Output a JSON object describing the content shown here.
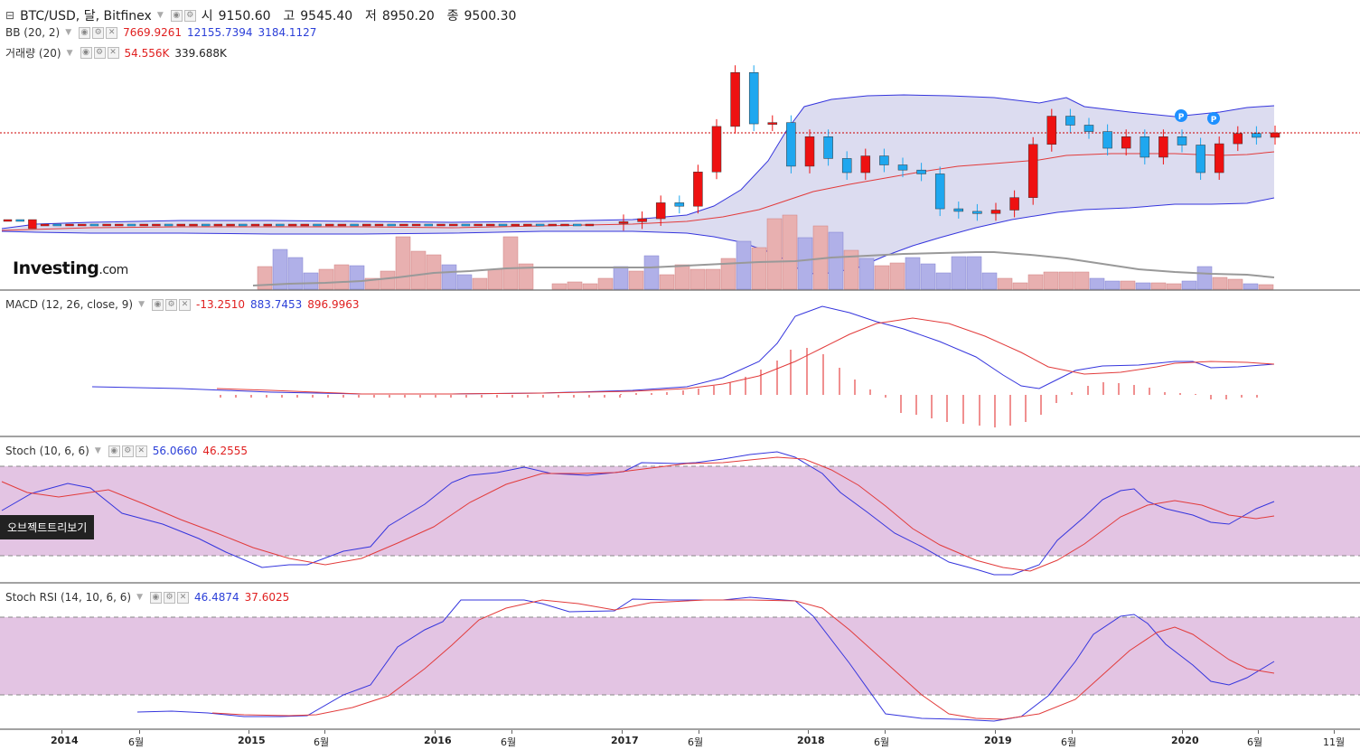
{
  "header": {
    "title": "BTC/USD, 달, Bitfinex",
    "ohlc": [
      {
        "k": "시",
        "v": "9150.60"
      },
      {
        "k": "고",
        "v": "9545.40"
      },
      {
        "k": "저",
        "v": "8950.20"
      },
      {
        "k": "종",
        "v": "9500.30"
      }
    ]
  },
  "indicators": {
    "bb": {
      "name": "BB (20, 2)",
      "v1": "7669.9261",
      "v2": "12155.7394",
      "v3": "3184.1127"
    },
    "vol": {
      "name": "거래량 (20)",
      "v1": "54.556K",
      "v2": "339.688K"
    },
    "macd": {
      "name": "MACD (12, 26, close, 9)",
      "v1": "-13.2510",
      "v2": "883.7453",
      "v3": "896.9963"
    },
    "stoch": {
      "name": "Stoch (10, 6, 6)",
      "v1": "56.0660",
      "v2": "46.2555"
    },
    "srsi": {
      "name": "Stoch RSI (14, 10, 6, 6)",
      "v1": "46.4874",
      "v2": "37.6025"
    }
  },
  "logo": {
    "main": "Investing",
    "suffix": ".com"
  },
  "tooltip": "오브젝트트리보기",
  "colors": {
    "up": "#ee1111",
    "down": "#1ea7ef",
    "blue_line": "#3535dd",
    "red_line": "#e23b3b",
    "band_fill": "#dcdcf0",
    "osc_fill": "#e3c4e3",
    "price_line": "#cc0000"
  },
  "chart_data": {
    "type": "candlestick",
    "interval": "monthly",
    "x_axis": {
      "labels": [
        {
          "text": "2014",
          "bold": true
        },
        {
          "text": "6월",
          "bold": false
        },
        {
          "text": "2015",
          "bold": true
        },
        {
          "text": "6월",
          "bold": false
        },
        {
          "text": "2016",
          "bold": true
        },
        {
          "text": "6월",
          "bold": false
        },
        {
          "text": "2017",
          "bold": true
        },
        {
          "text": "6월",
          "bold": false
        },
        {
          "text": "2018",
          "bold": true
        },
        {
          "text": "6월",
          "bold": false
        },
        {
          "text": "2019",
          "bold": true
        },
        {
          "text": "6월",
          "bold": false
        },
        {
          "text": "2020",
          "bold": true
        },
        {
          "text": "6월",
          "bold": false
        },
        {
          "text": "11월",
          "bold": false
        }
      ]
    },
    "last_close": 9500.3,
    "markers": [
      "P",
      "P"
    ],
    "candles_2017_2020": [
      {
        "o": 2300,
        "c": 2500
      },
      {
        "o": 2500,
        "c": 2850
      },
      {
        "o": 2850,
        "c": 4700
      },
      {
        "o": 4700,
        "c": 4300
      },
      {
        "o": 4300,
        "c": 6450
      },
      {
        "o": 6450,
        "c": 10000
      },
      {
        "o": 10000,
        "c": 14200
      },
      {
        "o": 14200,
        "c": 10200
      },
      {
        "o": 10200,
        "c": 10300
      },
      {
        "o": 10300,
        "c": 6900
      },
      {
        "o": 6900,
        "c": 9200
      },
      {
        "o": 9200,
        "c": 7500
      },
      {
        "o": 7500,
        "c": 6400
      },
      {
        "o": 6400,
        "c": 7700
      },
      {
        "o": 7700,
        "c": 7000
      },
      {
        "o": 7000,
        "c": 6600
      },
      {
        "o": 6600,
        "c": 6300
      },
      {
        "o": 6300,
        "c": 4000
      },
      {
        "o": 4000,
        "c": 3700
      },
      {
        "o": 3700,
        "c": 3450
      },
      {
        "o": 3450,
        "c": 3850
      },
      {
        "o": 3850,
        "c": 5300
      },
      {
        "o": 5300,
        "c": 8600
      },
      {
        "o": 8600,
        "c": 10800
      },
      {
        "o": 10800,
        "c": 10100
      },
      {
        "o": 10100,
        "c": 9600
      },
      {
        "o": 9600,
        "c": 8300
      },
      {
        "o": 8300,
        "c": 9200
      },
      {
        "o": 9200,
        "c": 7600
      },
      {
        "o": 7600,
        "c": 9200
      },
      {
        "o": 9200,
        "c": 8550
      },
      {
        "o": 8550,
        "c": 6400
      },
      {
        "o": 6400,
        "c": 8650
      },
      {
        "o": 8650,
        "c": 9450
      },
      {
        "o": 9450,
        "c": 9150
      },
      {
        "o": 9150,
        "c": 9500
      }
    ]
  }
}
